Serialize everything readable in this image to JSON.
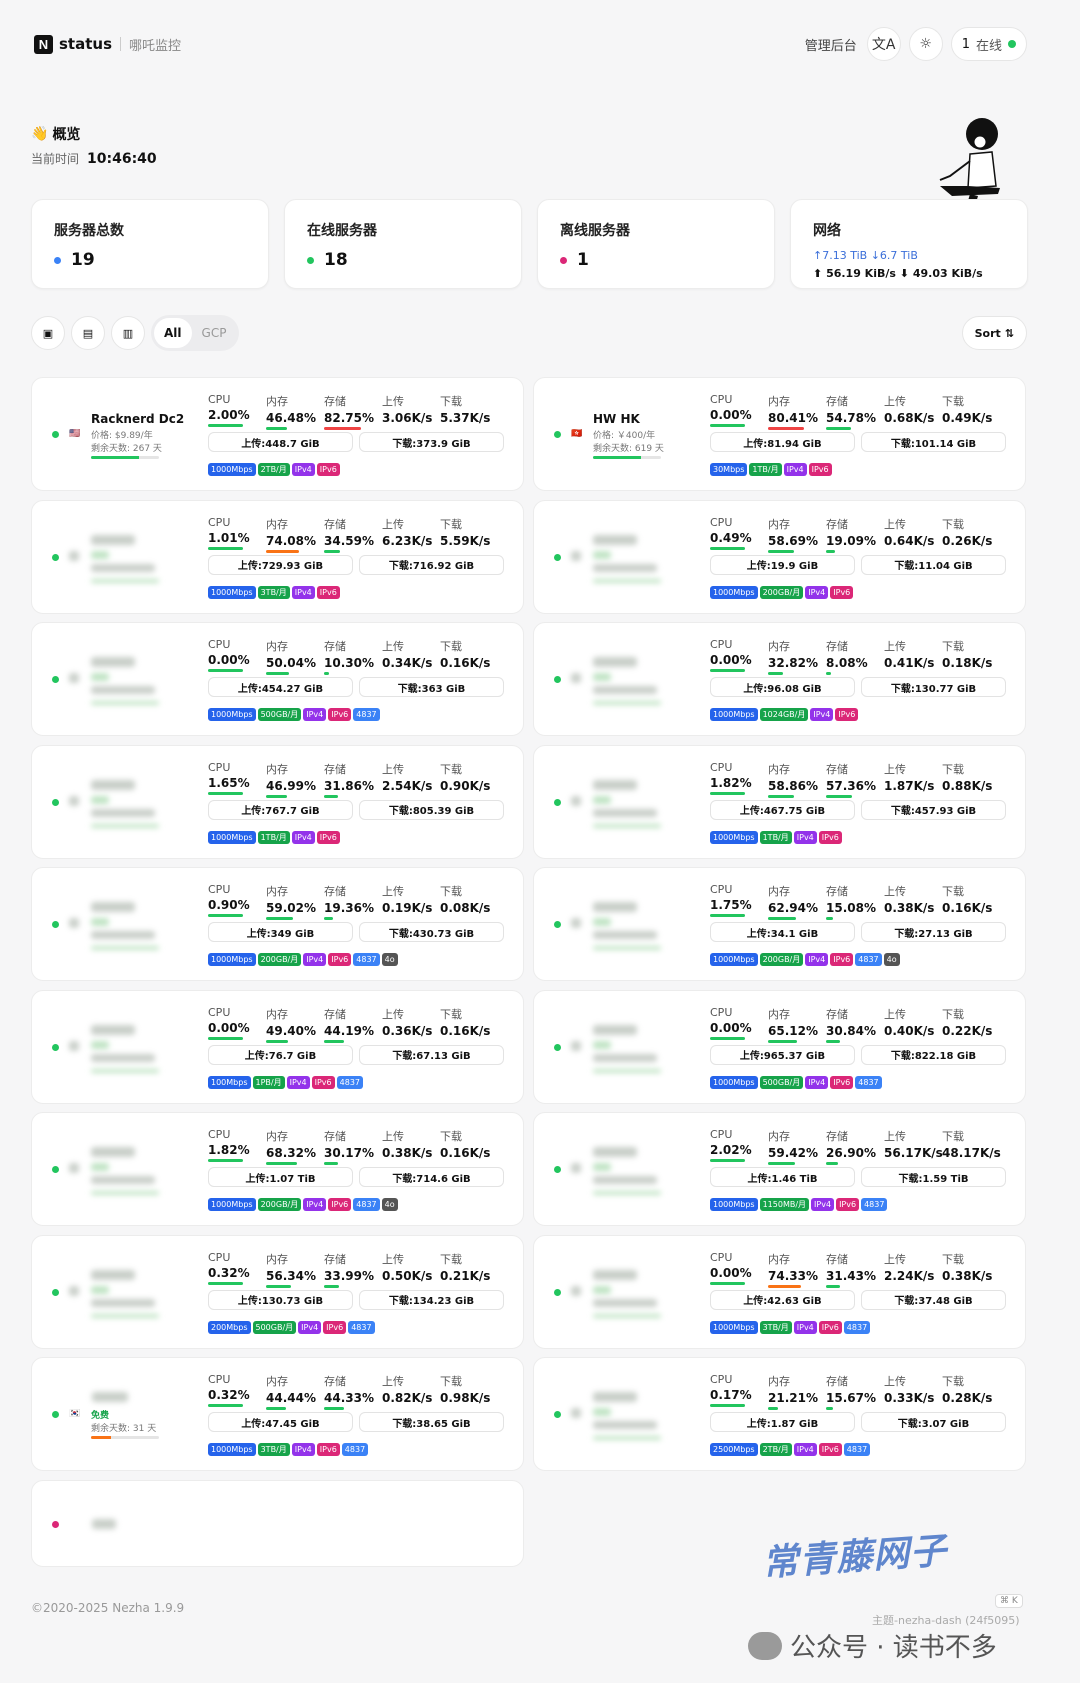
{
  "header": {
    "brand": "status",
    "subtitle": "哪吒监控",
    "admin": "管理后台",
    "online_count": "1",
    "online_label": "在线"
  },
  "overview": {
    "title": "概览",
    "time_label": "当前时间",
    "time": "10:46:40"
  },
  "stats": {
    "total": {
      "label": "服务器总数",
      "value": "19"
    },
    "online": {
      "label": "在线服务器",
      "value": "18"
    },
    "offline": {
      "label": "离线服务器",
      "value": "1"
    },
    "network": {
      "label": "网络",
      "upload_total": "↑7.13 TiB",
      "download_total": "↓6.7 TiB",
      "upload_speed": "56.19 KiB/s",
      "download_speed": "49.03 KiB/s"
    }
  },
  "filters": {
    "tabs": [
      "All",
      "GCP"
    ],
    "sort": "Sort"
  },
  "metric_labels": {
    "cpu": "CPU",
    "mem": "内存",
    "disk": "存储",
    "up": "上传",
    "down": "下载"
  },
  "colors": {
    "green": "#22c55e",
    "orange": "#f97316",
    "red": "#ef4444",
    "blue": "#3b6fd9",
    "pink": "#db2777"
  },
  "servers": [
    {
      "name": "Racknerd Dc2",
      "flag": "🇺🇸",
      "price": "价格: $9.89/年",
      "days": "剩余天数: 267 天",
      "cpu": "2.00%",
      "mem": "46.48%",
      "disk": "82.75%",
      "up": "3.06K/s",
      "down": "5.37K/s",
      "up_total": "上传:448.7 GiB",
      "down_total": "下载:373.9 GiB",
      "tags": [
        "1000Mbps",
        "2TB/月",
        "IPv4",
        "IPv6"
      ]
    },
    {
      "name": "HW HK",
      "flag": "🇭🇰",
      "price": "价格: ￥400/年",
      "days": "剩余天数: 619 天",
      "cpu": "0.00%",
      "mem": "80.41%",
      "disk": "54.78%",
      "up": "0.68K/s",
      "down": "0.49K/s",
      "up_total": "上传:81.94 GiB",
      "down_total": "下载:101.14 GiB",
      "tags": [
        "30Mbps",
        "1TB/月",
        "IPv4",
        "IPv6"
      ]
    },
    {
      "cpu": "1.01%",
      "mem": "74.08%",
      "disk": "34.59%",
      "up": "6.23K/s",
      "down": "5.59K/s",
      "up_total": "上传:729.93 GiB",
      "down_total": "下载:716.92 GiB",
      "tags": [
        "1000Mbps",
        "3TB/月",
        "IPv4",
        "IPv6"
      ]
    },
    {
      "cpu": "0.49%",
      "mem": "58.69%",
      "disk": "19.09%",
      "up": "0.64K/s",
      "down": "0.26K/s",
      "up_total": "上传:19.9 GiB",
      "down_total": "下载:11.04 GiB",
      "tags": [
        "1000Mbps",
        "200GB/月",
        "IPv4",
        "IPv6"
      ]
    },
    {
      "cpu": "0.00%",
      "mem": "50.04%",
      "disk": "10.30%",
      "up": "0.34K/s",
      "down": "0.16K/s",
      "up_total": "上传:454.27 GiB",
      "down_total": "下载:363 GiB",
      "tags": [
        "1000Mbps",
        "500GB/月",
        "IPv4",
        "IPv6",
        "4837"
      ]
    },
    {
      "cpu": "0.00%",
      "mem": "32.82%",
      "disk": "8.08%",
      "up": "0.41K/s",
      "down": "0.18K/s",
      "up_total": "上传:96.08 GiB",
      "down_total": "下载:130.77 GiB",
      "tags": [
        "1000Mbps",
        "1024GB/月",
        "IPv4",
        "IPv6"
      ]
    },
    {
      "cpu": "1.65%",
      "mem": "46.99%",
      "disk": "31.86%",
      "up": "2.54K/s",
      "down": "0.90K/s",
      "up_total": "上传:767.7 GiB",
      "down_total": "下载:805.39 GiB",
      "tags": [
        "1000Mbps",
        "1TB/月",
        "IPv4",
        "IPv6"
      ]
    },
    {
      "cpu": "1.82%",
      "mem": "58.86%",
      "disk": "57.36%",
      "up": "1.87K/s",
      "down": "0.88K/s",
      "up_total": "上传:467.75 GiB",
      "down_total": "下载:457.93 GiB",
      "tags": [
        "1000Mbps",
        "1TB/月",
        "IPv4",
        "IPv6"
      ]
    },
    {
      "cpu": "0.90%",
      "mem": "59.02%",
      "disk": "19.36%",
      "up": "0.19K/s",
      "down": "0.08K/s",
      "up_total": "上传:349 GiB",
      "down_total": "下载:430.73 GiB",
      "tags": [
        "1000Mbps",
        "200GB/月",
        "IPv4",
        "IPv6",
        "4837",
        "4o"
      ]
    },
    {
      "cpu": "1.75%",
      "mem": "62.94%",
      "disk": "15.08%",
      "up": "0.38K/s",
      "down": "0.16K/s",
      "up_total": "上传:34.1 GiB",
      "down_total": "下载:27.13 GiB",
      "tags": [
        "1000Mbps",
        "200GB/月",
        "IPv4",
        "IPv6",
        "4837",
        "4o"
      ]
    },
    {
      "cpu": "0.00%",
      "mem": "49.40%",
      "disk": "44.19%",
      "up": "0.36K/s",
      "down": "0.16K/s",
      "up_total": "上传:76.7 GiB",
      "down_total": "下载:67.13 GiB",
      "tags": [
        "100Mbps",
        "1PB/月",
        "IPv4",
        "IPv6",
        "4837"
      ]
    },
    {
      "cpu": "0.00%",
      "mem": "65.12%",
      "disk": "30.84%",
      "up": "0.40K/s",
      "down": "0.22K/s",
      "up_total": "上传:965.37 GiB",
      "down_total": "下载:822.18 GiB",
      "tags": [
        "1000Mbps",
        "500GB/月",
        "IPv4",
        "IPv6",
        "4837"
      ]
    },
    {
      "cpu": "1.82%",
      "mem": "68.32%",
      "disk": "30.17%",
      "up": "0.38K/s",
      "down": "0.16K/s",
      "up_total": "上传:1.07 TiB",
      "down_total": "下载:714.6 GiB",
      "tags": [
        "1000Mbps",
        "200GB/月",
        "IPv4",
        "IPv6",
        "4837",
        "4o"
      ]
    },
    {
      "cpu": "2.02%",
      "mem": "59.42%",
      "disk": "26.90%",
      "up": "56.17K/s",
      "down": "48.17K/s",
      "up_total": "上传:1.46 TiB",
      "down_total": "下载:1.59 TiB",
      "tags": [
        "1000Mbps",
        "1150MB/月",
        "IPv4",
        "IPv6",
        "4837"
      ]
    },
    {
      "cpu": "0.32%",
      "mem": "56.34%",
      "disk": "33.99%",
      "up": "0.50K/s",
      "down": "0.21K/s",
      "up_total": "上传:130.73 GiB",
      "down_total": "下载:134.23 GiB",
      "tags": [
        "200Mbps",
        "500GB/月",
        "IPv4",
        "IPv6",
        "4837"
      ]
    },
    {
      "cpu": "0.00%",
      "mem": "74.33%",
      "disk": "31.43%",
      "up": "2.24K/s",
      "down": "0.38K/s",
      "up_total": "上传:42.63 GiB",
      "down_total": "下载:37.48 GiB",
      "tags": [
        "1000Mbps",
        "3TB/月",
        "IPv4",
        "IPv6",
        "4837"
      ]
    },
    {
      "flag": "🇰🇷",
      "free": "免费",
      "days": "剩余天数: 31 天",
      "cpu": "0.32%",
      "mem": "44.44%",
      "disk": "44.33%",
      "up": "0.82K/s",
      "down": "0.98K/s",
      "up_total": "上传:47.45 GiB",
      "down_total": "下载:38.65 GiB",
      "tags": [
        "1000Mbps",
        "3TB/月",
        "IPv4",
        "IPv6",
        "4837"
      ]
    },
    {
      "cpu": "0.17%",
      "mem": "21.21%",
      "disk": "15.67%",
      "up": "0.33K/s",
      "down": "0.28K/s",
      "up_total": "上传:1.87 GiB",
      "down_total": "下载:3.07 GiB",
      "tags": [
        "2500Mbps",
        "2TB/月",
        "IPv4",
        "IPv6",
        "4837"
      ]
    }
  ],
  "footer": {
    "copyright": "©2020-2025 Nezha 1.9.9",
    "theme": "主题-nezha-dash (24f5095)",
    "kbd": "⌘ K"
  },
  "watermark": {
    "text": "常青藤网子",
    "wechat": "公众号 · 读书不多"
  }
}
